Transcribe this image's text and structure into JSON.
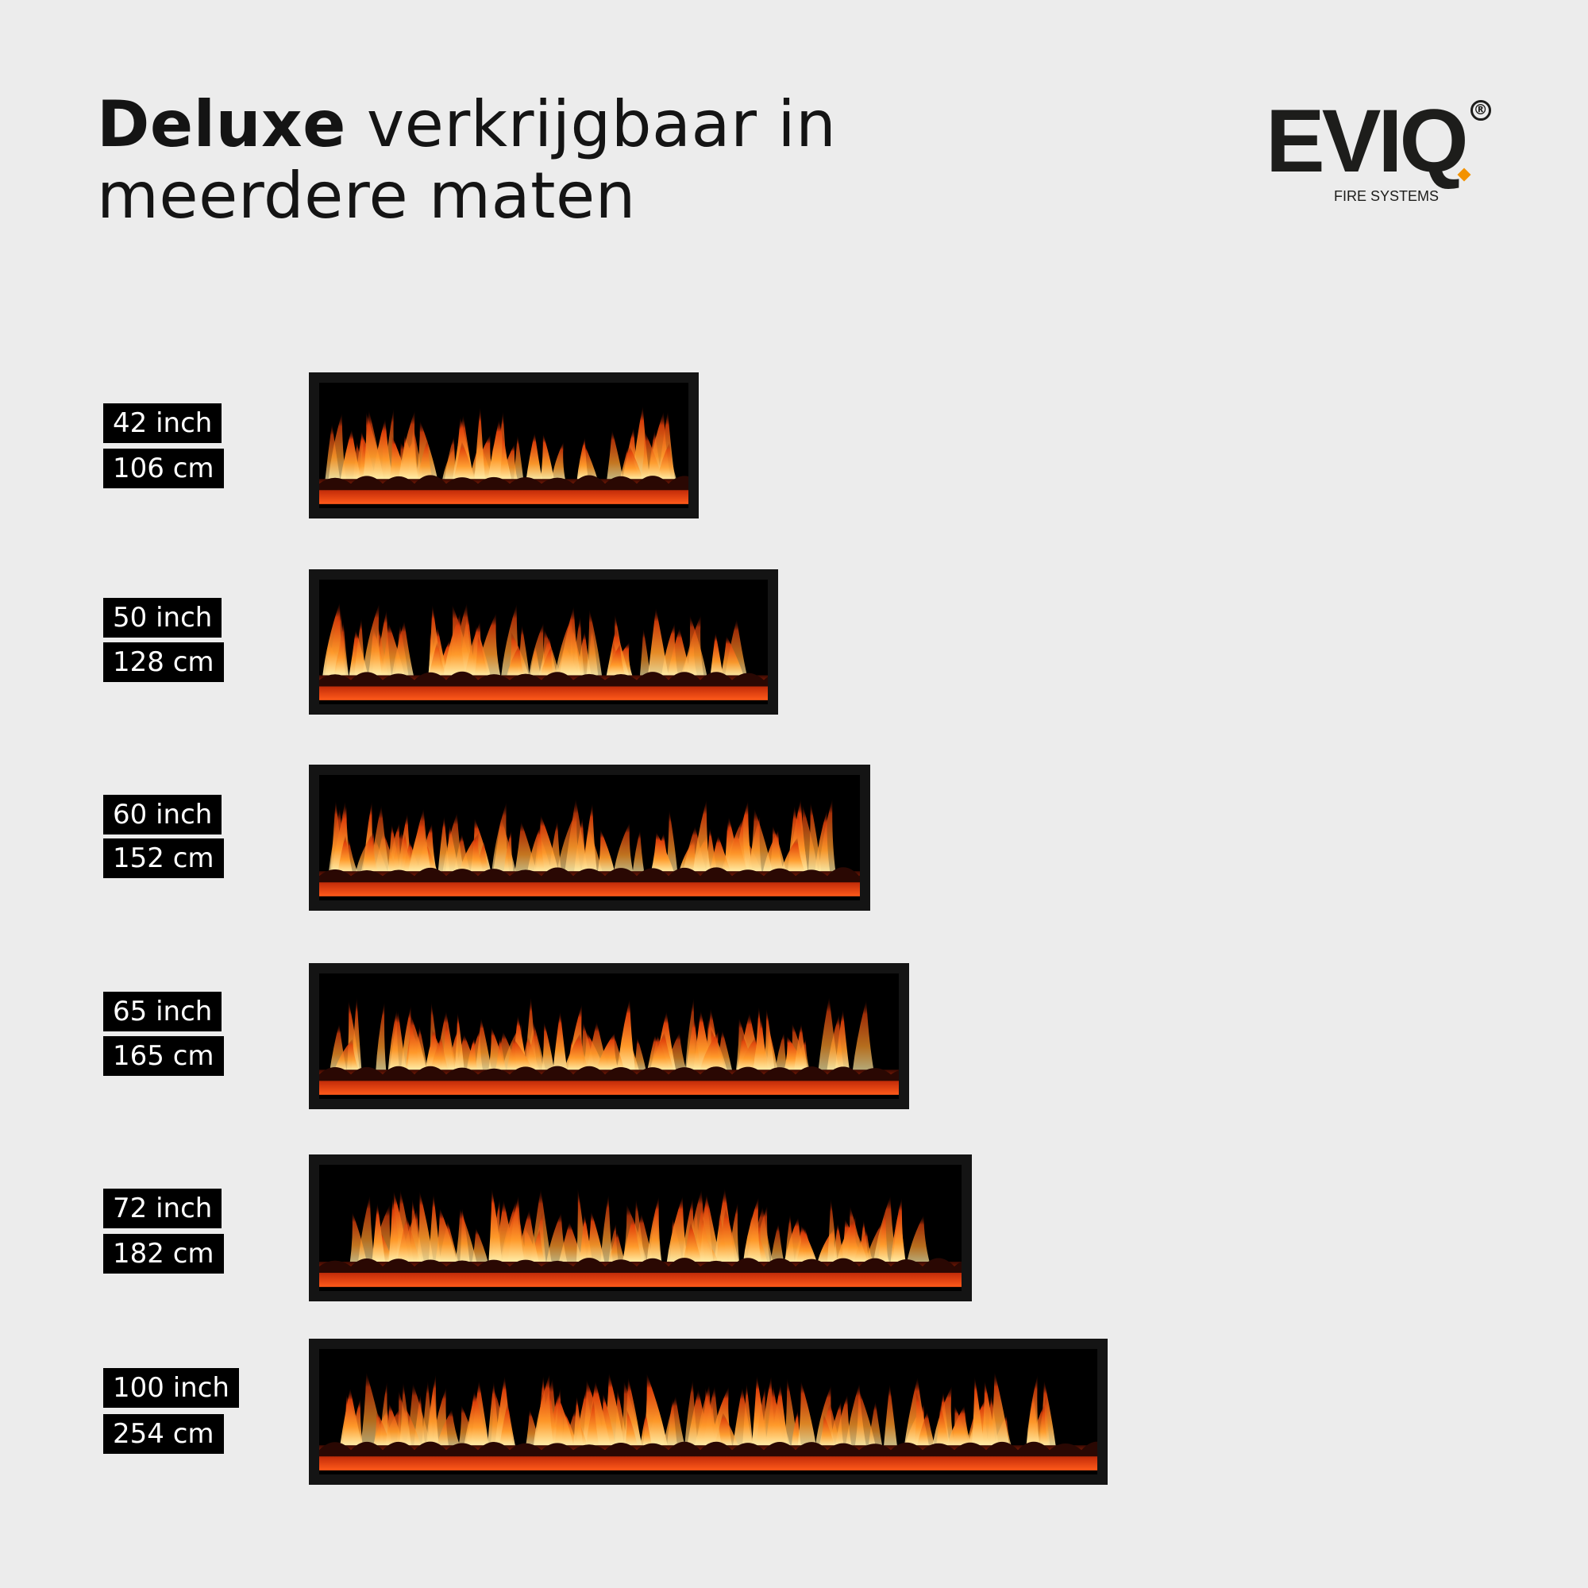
{
  "title": {
    "bold": "Deluxe",
    "rest_line1": " verkrijgbaar in",
    "line2": "meerdere maten"
  },
  "logo": {
    "text": "EVIQ",
    "registered": "®",
    "tagline": "FIRE SYSTEMS",
    "accent_color": "#f39200"
  },
  "sizes": [
    {
      "inch": "42 inch",
      "cm": "106 cm"
    },
    {
      "inch": "50 inch",
      "cm": "128 cm"
    },
    {
      "inch": "60 inch",
      "cm": "152 cm"
    },
    {
      "inch": "65 inch",
      "cm": "165 cm"
    },
    {
      "inch": "72 inch",
      "cm": "182 cm"
    },
    {
      "inch": "100 inch",
      "cm": "254 cm"
    }
  ],
  "colors": {
    "background": "#ececec",
    "label_bg": "#000000",
    "frame": "#141414",
    "flame": "#ff7a1a"
  }
}
